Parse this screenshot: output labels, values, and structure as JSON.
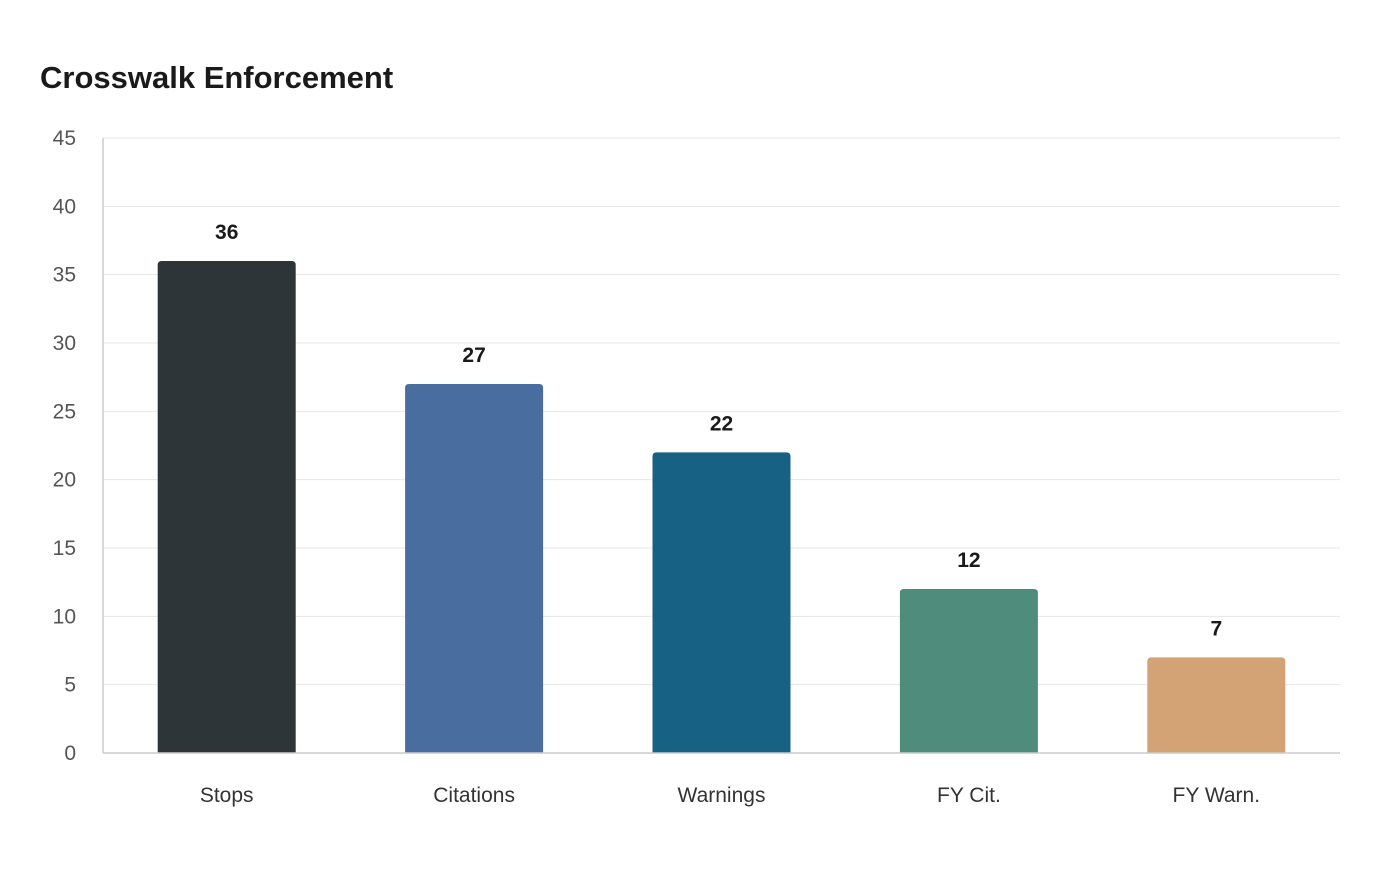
{
  "chart_data": {
    "type": "bar",
    "title": "Crosswalk Enforcement",
    "xlabel": "",
    "ylabel": "",
    "categories": [
      "Stops",
      "Citations",
      "Warnings",
      "FY Cit.",
      "FY Warn."
    ],
    "values": [
      36,
      27,
      22,
      12,
      7
    ],
    "colors": [
      "#2e3538",
      "#4a6da0",
      "#176185",
      "#4f8c7c",
      "#d3a375"
    ],
    "ylim": [
      0,
      45
    ],
    "yticks": [
      0,
      5,
      10,
      15,
      20,
      25,
      30,
      35,
      40,
      45
    ],
    "grid": true,
    "legend": false,
    "data_labels": true
  }
}
